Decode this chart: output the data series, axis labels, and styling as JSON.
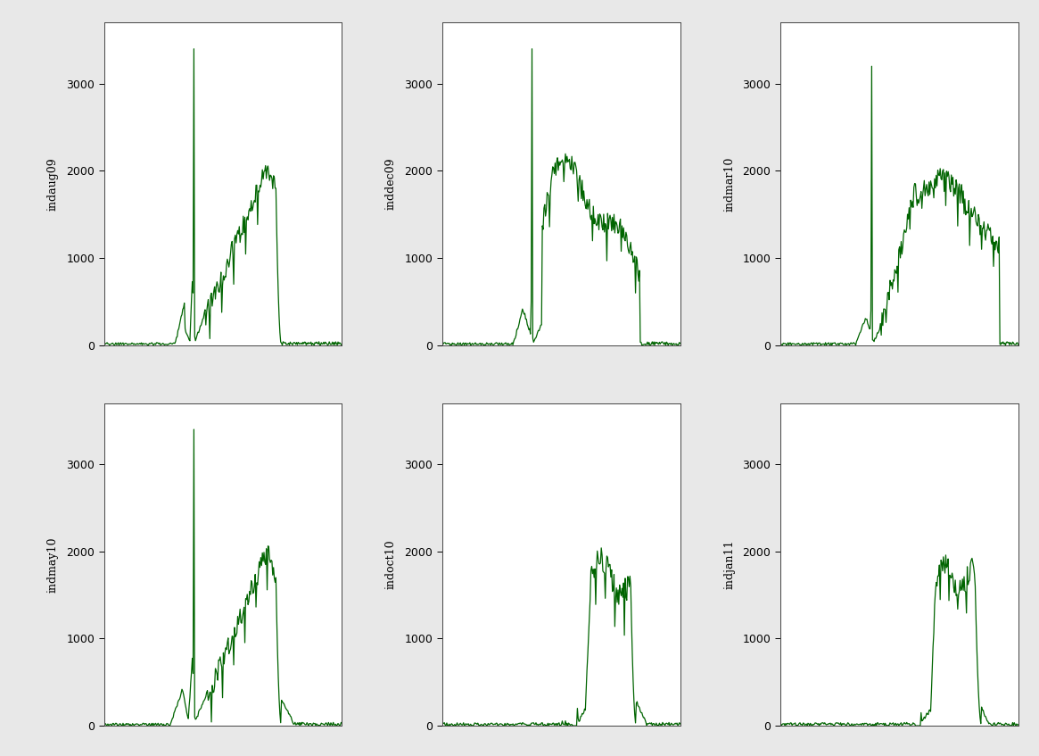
{
  "panels": [
    {
      "label": "indaug09"
    },
    {
      "label": "inddec09"
    },
    {
      "label": "indmar10"
    },
    {
      "label": "indmay10"
    },
    {
      "label": "indoct10"
    },
    {
      "label": "indjan11"
    }
  ],
  "line_color": "#006400",
  "bg_color": "#ffffff",
  "outer_bg": "#e8e8e8",
  "ylim": [
    0,
    3700
  ],
  "yticks": [
    0,
    1000,
    2000,
    3000
  ],
  "tick_fontsize": 9,
  "ylabel_fontsize": 9,
  "line_width": 0.9,
  "figsize": [
    11.65,
    8.47
  ],
  "dpi": 100
}
